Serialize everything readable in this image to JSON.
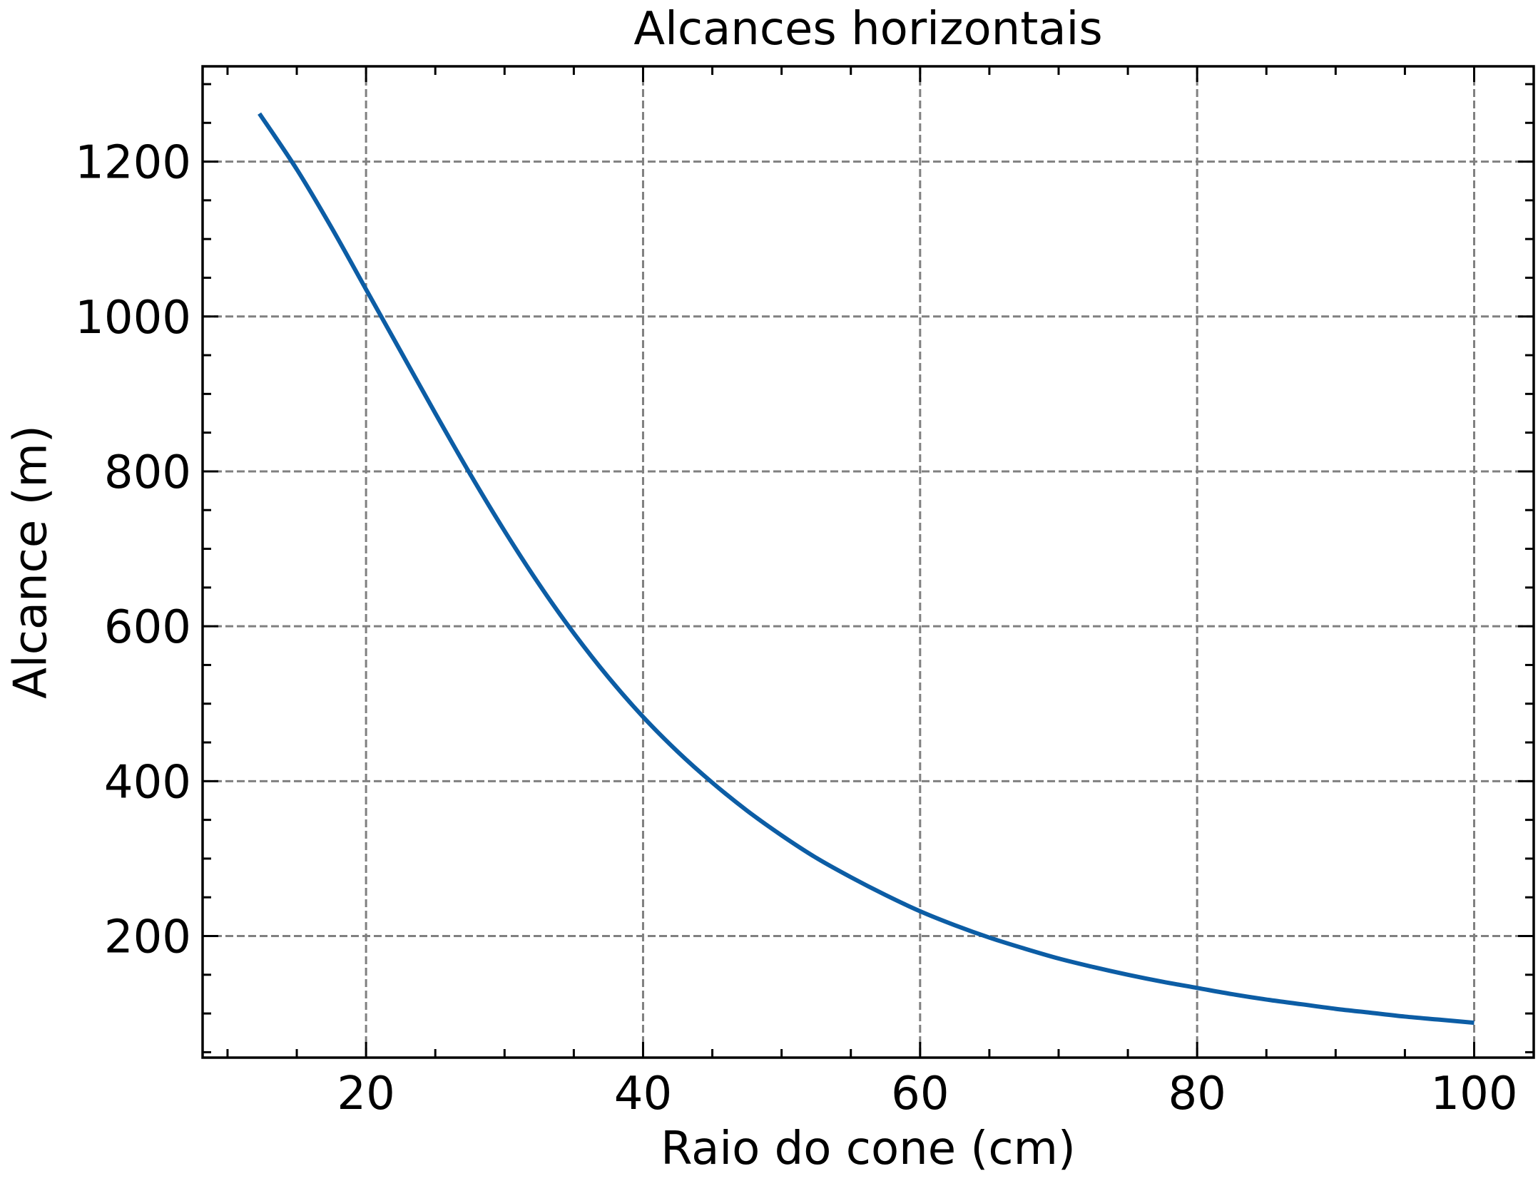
{
  "chart_data": {
    "type": "line",
    "title": "Alcances horizontais",
    "xlabel": "Raio do cone (cm)",
    "ylabel": "Alcance (m)",
    "xlim": [
      8.2,
      104.3
    ],
    "ylim": [
      43,
      1323
    ],
    "x_ticks": [
      20,
      40,
      60,
      80,
      100
    ],
    "x_tick_labels": [
      "20",
      "40",
      "60",
      "80",
      "100"
    ],
    "x_minor_step": 5,
    "y_ticks": [
      200,
      400,
      600,
      800,
      1000,
      1200
    ],
    "y_tick_labels": [
      "200",
      "400",
      "600",
      "800",
      "1000",
      "1200"
    ],
    "y_minor_step": 50,
    "grid": true,
    "tick_direction": "in",
    "ticks_on_all_sides": true,
    "series": [
      {
        "color": "#0C5DA5",
        "x": [
          12.3,
          15,
          17.5,
          20,
          22.5,
          25,
          27.5,
          30,
          32.5,
          35,
          37.5,
          40,
          42.5,
          45,
          47.5,
          50,
          52.5,
          55,
          57.5,
          60,
          62.5,
          65,
          67.5,
          70,
          72.5,
          75,
          77.5,
          80,
          82.5,
          85,
          87.5,
          90,
          92.5,
          95,
          97.5,
          100
        ],
        "y": [
          1262,
          1190,
          1115,
          1035,
          955,
          875,
          797,
          723,
          654,
          591,
          534,
          483,
          438,
          398,
          362,
          330,
          301,
          276,
          253,
          232,
          214,
          198,
          184,
          171,
          160,
          150,
          141,
          133,
          125,
          118,
          112,
          106,
          101,
          96,
          92,
          88
        ]
      }
    ]
  }
}
